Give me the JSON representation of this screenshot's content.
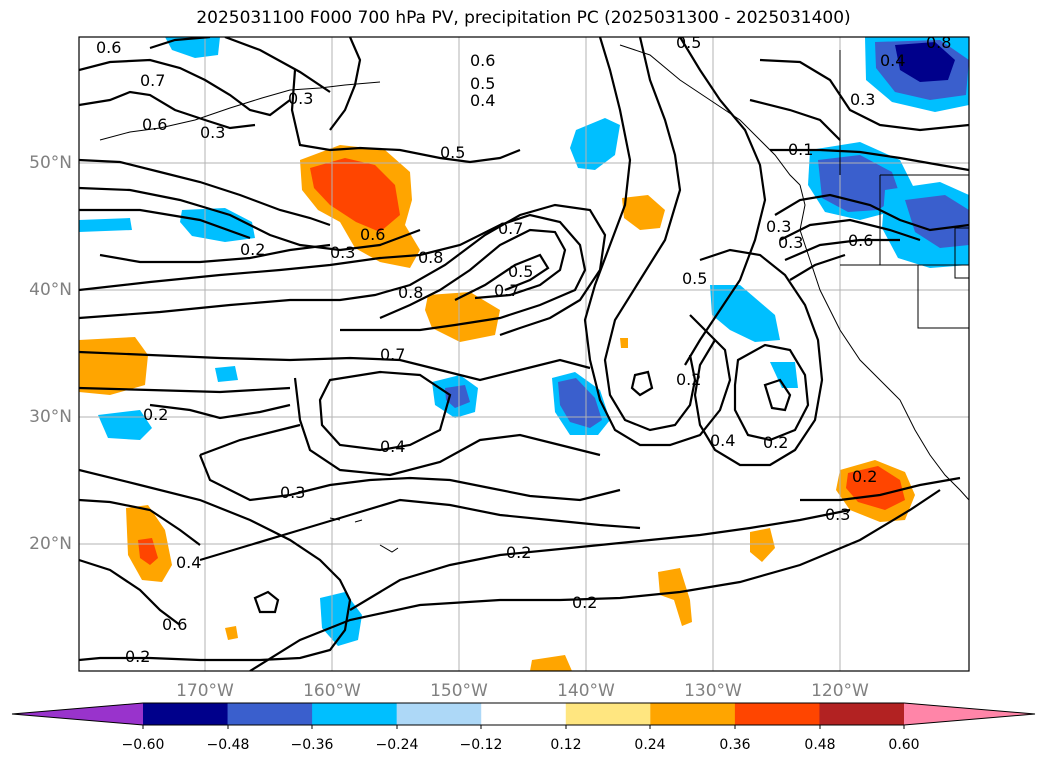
{
  "title": "2025031100 F000 700 hPa PV, precipitation PC (2025031300 - 2025031400)",
  "lat_labels": [
    "50°N",
    "40°N",
    "30°N",
    "20°N"
  ],
  "lon_labels": [
    "170°W",
    "160°W",
    "150°W",
    "140°W",
    "130°W",
    "120°W"
  ],
  "colorbar": {
    "ticks": [
      "−0.60",
      "−0.48",
      "−0.36",
      "−0.24",
      "−0.12",
      "0.12",
      "0.24",
      "0.36",
      "0.48",
      "0.60"
    ],
    "colors": [
      "#9933cc",
      "#00008b",
      "#3a5fcd",
      "#00bfff",
      "#add8f7",
      "#ffffff",
      "#ffe680",
      "#ffa500",
      "#ff4500",
      "#b22222",
      "#ff85a8"
    ]
  },
  "contour_labels": [
    "0.6",
    "0.7",
    "0.6",
    "0.3",
    "0.3",
    "0.6",
    "0.5",
    "0.4",
    "0.5",
    "0.8",
    "0.3",
    "0.4",
    "0.5",
    "0.2",
    "0.3",
    "0.6",
    "0.8",
    "0.7",
    "0.5",
    "0.7",
    "0.8",
    "0.1",
    "0.3",
    "0.3",
    "0.6",
    "0.5",
    "0.7",
    "0.2",
    "0.4",
    "0.2",
    "0.4",
    "0.3",
    "0.2",
    "0.2",
    "0.3",
    "0.2",
    "0.4"
  ]
}
